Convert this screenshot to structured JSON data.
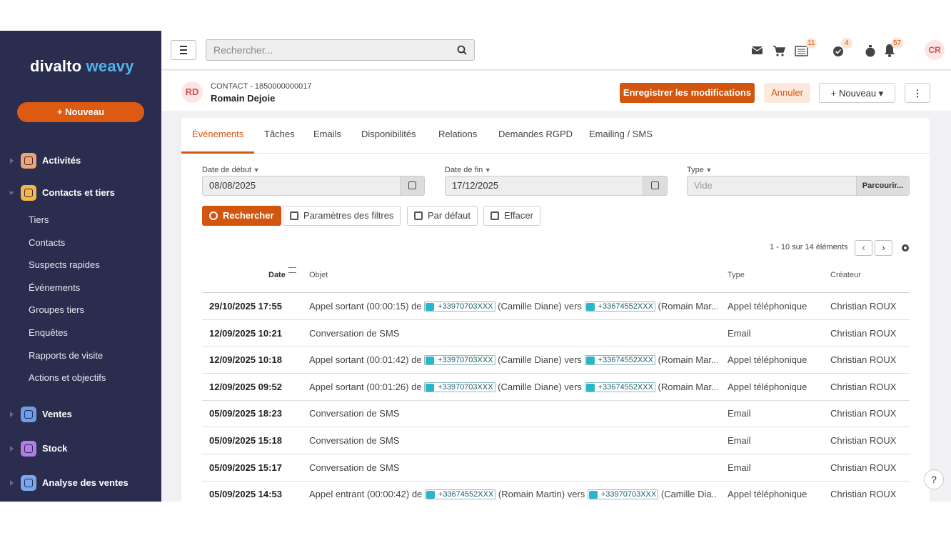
{
  "sidebar": {
    "brand": {
      "name": "divalto",
      "product": "weavy"
    },
    "new_button": "Nouveau",
    "menu": [
      {
        "label": "Activités",
        "color": "#f2a36e"
      },
      {
        "label": "Contacts et tiers",
        "color": "#f4b646",
        "items": [
          "Tiers",
          "Contacts",
          "Suspects rapides",
          "Événements",
          "Groupes tiers",
          "Enquêtes",
          "Rapports de visite",
          "Actions et objectifs"
        ]
      },
      {
        "label": "Ventes",
        "color": "#6b9de8"
      },
      {
        "label": "Stock",
        "color": "#b47de6"
      },
      {
        "label": "Analyse des ventes",
        "color": "#7aa6ee"
      }
    ]
  },
  "topbar": {
    "search_placeholder": "Rechercher...",
    "badges": [
      11,
      4,
      57
    ],
    "user_initials": "CR"
  },
  "record": {
    "initials": "RD",
    "type_label": "CONTACT - 1850000000017",
    "name": "Romain Dejoie",
    "buttons": {
      "save": "Enregistrer les modifications",
      "cancel": "Annuler",
      "new": "Nouveau"
    }
  },
  "tabs": [
    "Événements",
    "Tâches",
    "Emails",
    "Disponibilités",
    "Relations",
    "Demandes RGPD",
    "Emailing / SMS"
  ],
  "filters": [
    {
      "label": "Date de début",
      "value": "08/08/2025"
    },
    {
      "label": "Date de fin",
      "value": "17/12/2025"
    },
    {
      "label": "Type",
      "placeholder": "Vide",
      "browse": "Parcourir..."
    }
  ],
  "actions": [
    "Rechercher",
    "Paramètres des filtres",
    "Par défaut",
    "Effacer"
  ],
  "pagination": "1 - 10 sur 14 éléments",
  "table": {
    "columns": [
      "Date",
      "Objet",
      "Type",
      "Créateur"
    ],
    "rows": [
      {
        "date": "29/10/2025 17:55",
        "object": [
          "Appel sortant (00:00:15) de ",
          {
            "phone": "+33970703XXX"
          },
          " (Camille Diane) vers ",
          {
            "phone": "+33674552XXX"
          },
          " (Romain Mar..."
        ],
        "type": "Appel téléphonique",
        "creator": "Christian ROUX"
      },
      {
        "date": "12/09/2025 10:21",
        "object": [
          "Conversation de SMS"
        ],
        "type": "Email",
        "creator": "Christian ROUX"
      },
      {
        "date": "12/09/2025 10:18",
        "object": [
          "Appel sortant (00:01:42) de ",
          {
            "phone": "+33970703XXX"
          },
          " (Camille Diane) vers ",
          {
            "phone": "+33674552XXX"
          },
          " (Romain Mar..."
        ],
        "type": "Appel téléphonique",
        "creator": "Christian ROUX"
      },
      {
        "date": "12/09/2025 09:52",
        "object": [
          "Appel sortant (00:01:26) de ",
          {
            "phone": "+33970703XXX"
          },
          " (Camille Diane) vers ",
          {
            "phone": "+33674552XXX"
          },
          " (Romain Mar..."
        ],
        "type": "Appel téléphonique",
        "creator": "Christian ROUX"
      },
      {
        "date": "05/09/2025 18:23",
        "object": [
          "Conversation de SMS"
        ],
        "type": "Email",
        "creator": "Christian ROUX"
      },
      {
        "date": "05/09/2025 15:18",
        "object": [
          "Conversation de SMS"
        ],
        "type": "Email",
        "creator": "Christian ROUX"
      },
      {
        "date": "05/09/2025 15:17",
        "object": [
          "Conversation de SMS"
        ],
        "type": "Email",
        "creator": "Christian ROUX"
      },
      {
        "date": "05/09/2025 14:53",
        "object": [
          "Appel entrant (00:00:42) de ",
          {
            "phone": "+33674552XXX"
          },
          " (Romain Martin) vers ",
          {
            "phone": "+33970703XXX"
          },
          " (Camille Dia..."
        ],
        "type": "Appel téléphonique",
        "creator": "Christian ROUX"
      }
    ]
  },
  "help": "?"
}
